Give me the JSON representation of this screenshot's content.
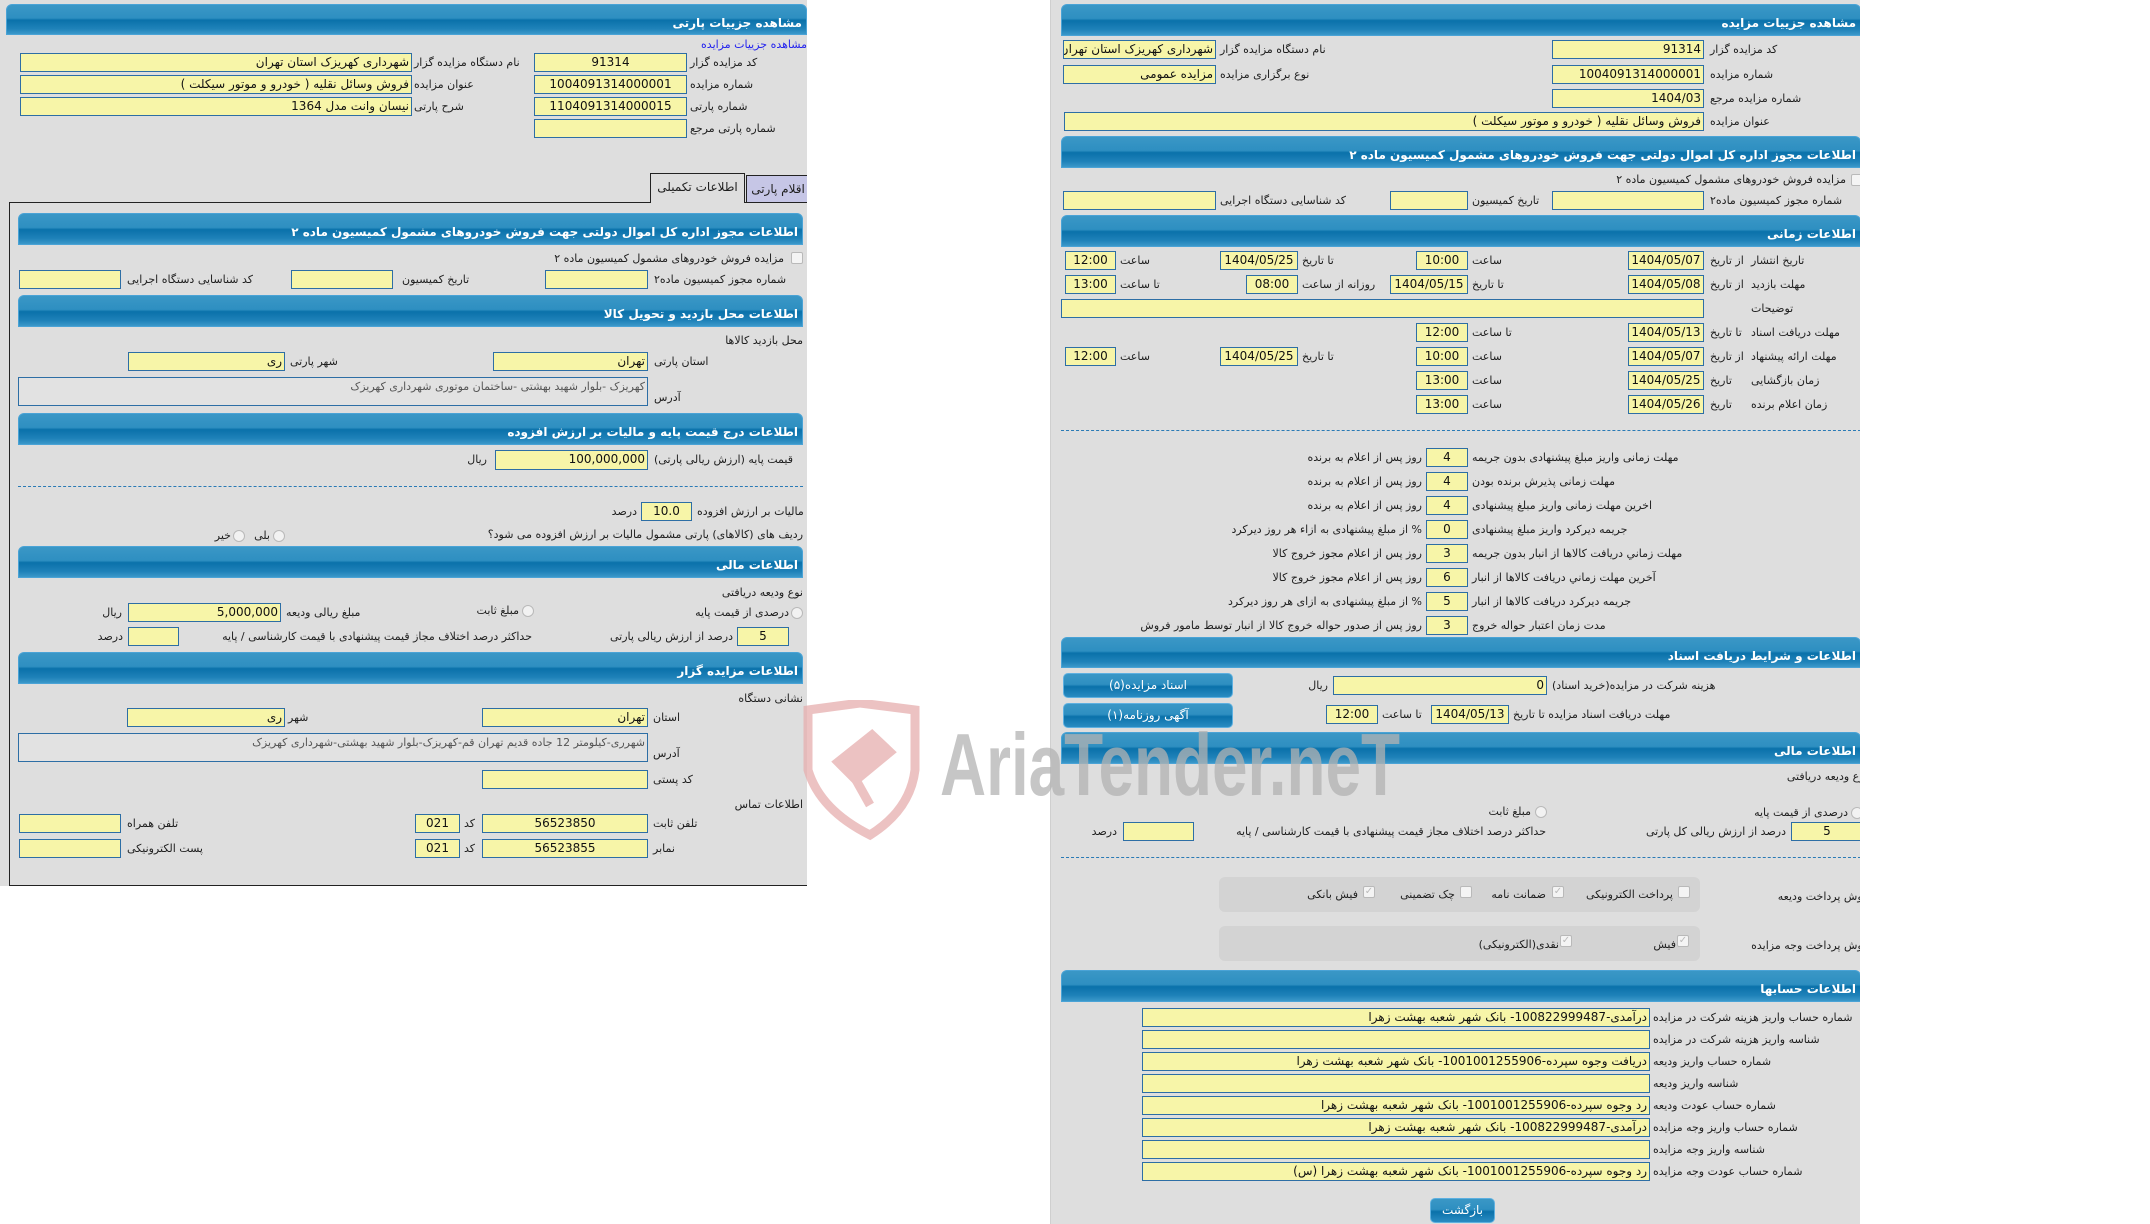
{
  "left_panel": {
    "title": "مشاهده جزییات پارتی",
    "auction_details_link": "مشاهده جزییات مزایده",
    "fields": {
      "code_label": "کد مزایده گزار",
      "code": "91314",
      "org_label": "نام دستگاه مزایده گزار",
      "org": "شهرداری کهریزک استان تهران",
      "auction_no_label": "شماره مزایده",
      "auction_no": "1004091314000001",
      "title_label": "عنوان مزایده",
      "title": "فروش وسائل نقلیه ( خودرو و موتور سیکلت )",
      "lot_no_label": "شماره پارتی",
      "lot_no": "1104091314000015",
      "lot_desc_label": "شرح پارتی",
      "lot_desc": "نیسان وانت مدل 1364",
      "ref_lot_label": "شماره پارتی مرجع",
      "ref_lot": ""
    },
    "tabs": [
      {
        "label": "اطلاعات تکمیلی",
        "active": true
      },
      {
        "label": "اقلام پارتی",
        "active": false
      }
    ],
    "permit": {
      "header": "اطلاعات مجوز اداره کل اموال دولتی جهت فروش خودروهای مشمول کمیسیون ماده ۲",
      "checkbox_label": "مزایده فروش خودروهای مشمول کمیسیون ماده ۲",
      "checked": false,
      "permit_no_label": "شماره مجوز کمیسیون ماده۲",
      "permit_no": "",
      "commission_date_label": "تاریخ کمیسیون",
      "commission_date": "",
      "exec_code_label": "کد شناسایی دستگاه اجرایی",
      "exec_code": ""
    },
    "visit": {
      "header": "اطلاعات محل بازدید و تحویل کالا",
      "subtitle": "محل بازدید کالاها",
      "province_label": "استان پارتی",
      "province": "تهران",
      "city_label": "شهر پارتی",
      "city": "ری",
      "address_label": "آدرس",
      "address": "کهریزک -بلوار شهید بهشتی -ساختمان موتوری شهرداری کهریزک"
    },
    "price": {
      "header": "اطلاعات درج قیمت پایه و مالیات بر ارزش افزوده",
      "base_label": "قیمت پایه (ارزش ریالی پارتی)",
      "base": "100,000,000",
      "currency": "ریال",
      "vat_label": "مالیات بر ارزش افزوده",
      "vat": "10.0",
      "percent": "درصد",
      "vat_question": "ردیف های (کالاهای) پارتی مشمول مالیات بر ارزش افزوده می شود؟",
      "yes": "بلی",
      "no": "خیر"
    },
    "financial": {
      "header": "اطلاعات مالی",
      "deposit_type_label": "نوع ودیعه دریافتی",
      "percent_option": "درصدی از قیمت پایه",
      "fixed_option": "مبلغ ثابت",
      "deposit_amount_label": "مبلغ ریالی ودیعه",
      "deposit_amount": "5,000,000",
      "currency": "ریال",
      "percent_value": "5",
      "percent_of_label": "درصد از ارزش ریالی پارتی",
      "max_diff_label": "حداکثر درصد اختلاف مجاز قیمت پیشنهادی با قیمت کارشناسی / پایه",
      "max_diff": "",
      "percent": "درصد"
    },
    "auctioneer": {
      "header": "اطلاعات مزایده گزار",
      "address_title": "نشانی دستگاه",
      "province_label": "استان",
      "province": "تهران",
      "city_label": "شهر",
      "city": "ری",
      "address_label": "آدرس",
      "address": "شهرری-کیلومتر 12 جاده قدیم تهران قم-کهریزک-بلوار شهید بهشتی-شهرداری کهریزک",
      "postal_label": "کد پستی",
      "postal": "",
      "contact_title": "اطلاعات تماس",
      "phone_label": "تلفن ثابت",
      "phone": "56523850",
      "code_label": "کد",
      "phone_code": "021",
      "mobile_label": "تلفن همراه",
      "mobile": "",
      "fax_label": "نمابر",
      "fax": "56523855",
      "fax_code": "021",
      "email_label": "پست الکترونیکی",
      "email": ""
    }
  },
  "right_panel": {
    "title": "مشاهده جزییات مزایده",
    "fields": {
      "code_label": "کد مزایده گزار",
      "code": "91314",
      "org_label": "نام دستگاه مزایده گزار",
      "org": "شهرداری کهریزک استان تهران",
      "auction_no_label": "شماره مزایده",
      "auction_no": "1004091314000001",
      "type_label": "نوع برگزاری مزایده",
      "type": "مزایده عمومی",
      "ref_label": "شماره مزایده مرجع",
      "ref": "1404/03",
      "title_label": "عنوان مزایده",
      "title": "فروش وسائل نقلیه ( خودرو و موتور سیکلت )"
    },
    "permit": {
      "header": "اطلاعات مجوز اداره کل اموال دولتی جهت فروش خودروهای مشمول کمیسیون ماده ۲",
      "checkbox_label": "مزایده فروش خودروهای مشمول کمیسیون ماده ۲",
      "checked": false,
      "permit_no_label": "شماره مجوز کمیسیون ماده۲",
      "permit_no": "",
      "commission_date_label": "تاریخ کمیسیون",
      "commission_date": "",
      "exec_code_label": "کد شناسایی دستگاه اجرایی",
      "exec_code": ""
    },
    "timing": {
      "header": "اطلاعات زمانی",
      "from_date": "از تاریخ",
      "to_date": "تا تاریخ",
      "date": "تاریخ",
      "time": "ساعت",
      "to_time": "تا ساعت",
      "daily_from": "روزانه از ساعت",
      "publish": {
        "label": "تاریخ انتشار",
        "from": "1404/05/07",
        "from_time": "10:00",
        "to": "1404/05/25",
        "to_time": "12:00"
      },
      "visit": {
        "label": "مهلت بازدید",
        "from": "1404/05/08",
        "to": "1404/05/15",
        "daily_from": "08:00",
        "daily_to": "13:00"
      },
      "notes": {
        "label": "توضیحات",
        "value": ""
      },
      "docs": {
        "label": "مهلت دریافت اسناد",
        "to": "1404/05/13",
        "to_time": "12:00"
      },
      "offer": {
        "label": "مهلت ارائه پیشنهاد",
        "from": "1404/05/07",
        "from_time": "10:00",
        "to": "1404/05/25",
        "to_time": "12:00"
      },
      "opening": {
        "label": "زمان بازگشایی",
        "date": "1404/05/25",
        "time": "13:00"
      },
      "winner": {
        "label": "زمان اعلام برنده",
        "date": "1404/05/26",
        "time": "13:00"
      }
    },
    "deadlines": [
      {
        "label": "مهلت زمانی واریز مبلغ پیشنهادی بدون جریمه",
        "value": "4",
        "suffix": "روز پس از اعلام به برنده"
      },
      {
        "label": "مهلت زمانی پذیرش برنده بودن",
        "value": "4",
        "suffix": "روز پس از اعلام به برنده"
      },
      {
        "label": "اخرین مهلت زمانی واریز مبلغ پیشنهادی",
        "value": "4",
        "suffix": "روز پس از اعلام به برنده"
      },
      {
        "label": "جریمه دیرکرد واریز مبلغ پیشنهادی",
        "value": "0",
        "suffix": "% از مبلغ پیشنهادی به ازاء هر روز دیرکرد"
      },
      {
        "label": "مهلت زماني دريافت کالاها از انبار بدون جریمه",
        "value": "3",
        "suffix": "روز پس از اعلام مجوز خروج کالا"
      },
      {
        "label": "آخرین مهلت زماني دريافت کالاها از انبار",
        "value": "6",
        "suffix": "روز پس از اعلام مجوز خروج کالا"
      },
      {
        "label": "جریمه دیرکرد دریافت کالاها از انبار",
        "value": "5",
        "suffix": "% از مبلغ پیشنهادی به ازای هر روز دیرکرد"
      },
      {
        "label": "مدت زمان اعتبار حواله خروج",
        "value": "3",
        "suffix": "روز پس از صدور حواله خروج کالا از انبار توسط مامور فروش"
      }
    ],
    "documents": {
      "header": "اطلاعات و شرایط دریافت اسناد",
      "fee_label": "هزینه شرکت در مزایده(خرید اسناد)",
      "fee": "0",
      "currency": "ریال",
      "deadline_label": "مهلت دریافت اسناد مزایده تا تاریخ",
      "deadline_date": "1404/05/13",
      "to_time": "تا ساعت",
      "deadline_time": "12:00",
      "docs_button": "اسناد مزایده(۵)",
      "ads_button": "آگهی روزنامه(۱)"
    },
    "financial": {
      "header": "اطلاعات مالی",
      "deposit_type_label": "نوع ودیعه دریافتی",
      "percent_option": "درصدی از قیمت پایه",
      "fixed_option": "مبلغ ثابت",
      "percent_value": "5",
      "percent_of_label": "درصد از ارزش ریالی کل پارتی",
      "max_diff_label": "حداکثر درصد اختلاف مجاز قیمت پیشنهادی با قیمت کارشناسی / پایه",
      "max_diff": "",
      "percent": "درصد",
      "deposit_methods_label": "روش پرداخت ودیعه",
      "deposit_methods": [
        {
          "label": "پرداخت الکترونیکی",
          "checked": false
        },
        {
          "label": "ضمانت نامه",
          "checked": true
        },
        {
          "label": "چک تضمینی",
          "checked": false
        },
        {
          "label": "فیش بانکی",
          "checked": true
        }
      ],
      "payment_methods_label": "روش پرداخت وجه مزایده",
      "payment_methods": [
        {
          "label": "فیش",
          "checked": true
        },
        {
          "label": "نقدی(الکترونیکی)",
          "checked": true
        }
      ]
    },
    "accounts": {
      "header": "اطلاعات حسابها",
      "rows": [
        {
          "label": "شماره حساب واریز هزینه شرکت در مزایده",
          "value": "درآمدی-100822999487- بانک شهر شعبه بهشت زهرا"
        },
        {
          "label": "شناسه واریز هزینه شرکت در مزایده",
          "value": ""
        },
        {
          "label": "شماره حساب واریز ودیعه",
          "value": "دریافت وجوه سپرده-1001001255906- بانک شهر شعبه بهشت زهرا"
        },
        {
          "label": "شناسه واریز ودیعه",
          "value": ""
        },
        {
          "label": "شماره حساب عودت ودیعه",
          "value": "رد وجوه سپرده-1001001255906- بانک شهر شعبه بهشت زهرا"
        },
        {
          "label": "شماره حساب واریز وجه مزایده",
          "value": "درآمدی-100822999487- بانک شهر شعبه بهشت زهرا"
        },
        {
          "label": "شناسه واریز وجه مزایده",
          "value": ""
        },
        {
          "label": "شماره حساب عودت وجه مزایده",
          "value": "رد وجوه سپرده-1001001255906- بانک شهر شعبه بهشت زهرا (س)"
        }
      ]
    },
    "back_button": "بازگشت"
  },
  "watermark": {
    "text": "AriaTender.neT",
    "colors": {
      "shield": "#e9b4b4",
      "text": "#b0b0b0"
    }
  },
  "colors": {
    "header": "#0a71aa",
    "input_bg": "#f7f5a8",
    "input_border": "#2d6ea5",
    "page_bg": "#dedede",
    "link": "#2222ee"
  }
}
